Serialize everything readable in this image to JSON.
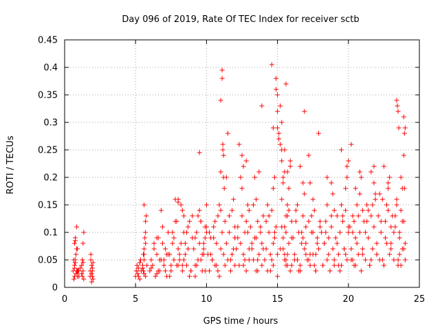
{
  "chart_data": {
    "type": "scatter",
    "title": "Day 096 of 2019, Rate Of TEC Index for receiver sctb",
    "xlabel": "GPS time / hours",
    "ylabel": "ROTI / TECUs",
    "xlim": [
      0,
      25
    ],
    "ylim": [
      0,
      0.45
    ],
    "xticks": [
      0,
      5,
      10,
      15,
      20,
      25
    ],
    "yticks": [
      0,
      0.05,
      0.1,
      0.15,
      0.2,
      0.25,
      0.3,
      0.35,
      0.4,
      0.45
    ],
    "grid": true,
    "marker": "+",
    "series": [
      {
        "name": "ROTI",
        "color": "#ff0000",
        "x": [
          0.6,
          0.65,
          0.7,
          0.7,
          0.75,
          0.8,
          0.85,
          0.9,
          0.95,
          1.0,
          0.7,
          0.75,
          0.8,
          0.85,
          0.9,
          0.7,
          0.75,
          0.8,
          0.65,
          0.7,
          0.75,
          0.85,
          0.9,
          1.0,
          1.0,
          1.1,
          1.2,
          1.25,
          1.3,
          1.35,
          1.2,
          1.25,
          1.3,
          1.3,
          1.35,
          1.8,
          1.85,
          1.9,
          1.95,
          2.0,
          1.85,
          1.9,
          1.95,
          2.0,
          1.8,
          1.9,
          1.95,
          5.0,
          5.05,
          5.1,
          5.15,
          5.2,
          5.3,
          5.35,
          5.4,
          5.5,
          5.55,
          5.6,
          5.2,
          5.3,
          5.4,
          5.5,
          5.6,
          5.7,
          5.6,
          5.7,
          5.65,
          5.7,
          5.6,
          5.75,
          5.8,
          5.55,
          5.6,
          5.7,
          6.0,
          6.1,
          6.2,
          6.3,
          6.4,
          6.5,
          6.6,
          6.7,
          6.8,
          6.9,
          7.0,
          7.1,
          7.2,
          7.3,
          7.4,
          7.5,
          7.6,
          7.7,
          7.8,
          7.9,
          8.0,
          6.5,
          6.6,
          6.8,
          7.0,
          7.2,
          7.4,
          7.6,
          7.8,
          8.0,
          6.1,
          6.3,
          6.5,
          6.7,
          6.9,
          7.1,
          7.3,
          7.5,
          7.7,
          7.9,
          8.1,
          8.2,
          8.3,
          8.4,
          8.5,
          8.6,
          8.7,
          8.8,
          8.9,
          9.0,
          8.2,
          8.4,
          8.6,
          8.8,
          9.0,
          8.1,
          8.3,
          8.5,
          8.7,
          8.9,
          8.0,
          8.0,
          8.3,
          8.4,
          9.1,
          9.2,
          9.3,
          9.4,
          9.5,
          9.6,
          9.7,
          9.8,
          9.9,
          10.0,
          9.2,
          9.4,
          9.6,
          9.8,
          10.0,
          9.3,
          9.5,
          9.7,
          9.9,
          9.2,
          9.4,
          9.6,
          9.8,
          9.9,
          10.0,
          9.5,
          10.1,
          10.2,
          10.3,
          10.4,
          10.5,
          10.6,
          10.7,
          10.8,
          10.9,
          11.0,
          10.2,
          10.4,
          10.6,
          10.8,
          11.0,
          10.3,
          10.5,
          10.7,
          10.9,
          11.0,
          11.0,
          11.1,
          11.1,
          11.15,
          11.15,
          11.2,
          11.2,
          11.25,
          11.1,
          11.2,
          11.3,
          11.3,
          11.4,
          11.5,
          11.6,
          11.7,
          11.8,
          11.9,
          12.0,
          11.4,
          11.6,
          11.8,
          12.0,
          11.5,
          11.7,
          11.9,
          12.0,
          12.0,
          12.1,
          12.2,
          12.3,
          12.4,
          12.5,
          12.6,
          12.7,
          12.8,
          12.9,
          13.0,
          12.2,
          12.4,
          12.6,
          12.8,
          13.0,
          12.3,
          12.5,
          12.7,
          12.9,
          12.5,
          12.6,
          12.8,
          13.0,
          13.1,
          13.2,
          13.3,
          13.4,
          13.5,
          13.6,
          13.7,
          13.8,
          13.9,
          14.0,
          13.2,
          13.4,
          13.6,
          13.8,
          14.0,
          13.3,
          13.5,
          13.7,
          13.9,
          13.5,
          13.6,
          13.9,
          14.1,
          14.2,
          14.3,
          14.4,
          14.5,
          14.6,
          14.7,
          14.8,
          14.9,
          15.0,
          14.2,
          14.4,
          14.6,
          14.8,
          15.0,
          14.3,
          14.5,
          14.7,
          14.9,
          14.6,
          14.7,
          14.7,
          14.8,
          14.9,
          15.0,
          15.0,
          15.0,
          15.1,
          15.2,
          15.3,
          15.4,
          15.5,
          15.6,
          15.7,
          15.8,
          15.9,
          16.0,
          15.1,
          15.2,
          15.3,
          15.3,
          15.4,
          15.4,
          15.5,
          15.5,
          15.6,
          15.6,
          15.6,
          15.7,
          15.7,
          15.8,
          15.9,
          16.0,
          15.2,
          15.4,
          15.6,
          15.8,
          16.0,
          15.3,
          15.5,
          15.7,
          15.9,
          15.3,
          15.5,
          15.7,
          16.1,
          16.2,
          16.3,
          16.4,
          16.5,
          16.6,
          16.7,
          16.8,
          16.9,
          17.0,
          16.2,
          16.4,
          16.6,
          16.8,
          17.0,
          16.3,
          16.5,
          16.7,
          16.9,
          16.6,
          16.8,
          16.9,
          17.0,
          17.1,
          17.2,
          17.3,
          17.4,
          17.5,
          17.6,
          17.7,
          17.8,
          17.9,
          18.0,
          17.2,
          17.4,
          17.6,
          17.8,
          18.0,
          17.3,
          17.5,
          17.7,
          17.9,
          17.2,
          17.3,
          17.5,
          17.7,
          18.1,
          18.2,
          18.3,
          18.4,
          18.5,
          18.6,
          18.7,
          18.8,
          18.9,
          19.0,
          18.2,
          18.4,
          18.6,
          18.8,
          19.0,
          18.3,
          18.5,
          18.7,
          18.9,
          18.5,
          18.8,
          19.0,
          19.1,
          19.2,
          19.3,
          19.4,
          19.5,
          19.6,
          19.7,
          19.8,
          19.9,
          20.0,
          19.2,
          19.4,
          19.6,
          19.8,
          20.0,
          19.3,
          19.5,
          19.7,
          19.9,
          19.5,
          19.8,
          19.9,
          20.0,
          20.2,
          20.3,
          20.1,
          20.2,
          20.3,
          20.4,
          20.5,
          20.6,
          20.7,
          20.8,
          20.9,
          21.0,
          20.2,
          20.4,
          20.6,
          20.8,
          21.0,
          20.3,
          20.5,
          20.7,
          20.9,
          20.5,
          20.8,
          21.0,
          21.1,
          21.2,
          21.3,
          21.4,
          21.5,
          21.6,
          21.7,
          21.8,
          21.9,
          22.0,
          21.2,
          21.4,
          21.6,
          21.8,
          22.0,
          21.3,
          21.5,
          21.7,
          21.9,
          21.6,
          21.8,
          22.0,
          22.1,
          22.2,
          22.3,
          22.4,
          22.5,
          22.6,
          22.7,
          22.8,
          22.9,
          23.0,
          22.2,
          22.4,
          22.6,
          22.8,
          23.0,
          22.3,
          22.5,
          22.7,
          22.9,
          22.5,
          22.8,
          23.0,
          23.1,
          23.2,
          23.3,
          23.4,
          23.5,
          23.6,
          23.7,
          23.8,
          23.9,
          24.0,
          23.2,
          23.4,
          23.6,
          23.8,
          24.0,
          23.3,
          23.5,
          23.7,
          23.9,
          23.4,
          23.45,
          23.5,
          23.55,
          23.5,
          23.6,
          23.7,
          23.8,
          23.9,
          23.95,
          24.0,
          23.9,
          23.95
        ],
        "y": [
          0.03,
          0.05,
          0.08,
          0.04,
          0.09,
          0.06,
          0.11,
          0.07,
          0.03,
          0.02,
          0.035,
          0.045,
          0.025,
          0.07,
          0.03,
          0.02,
          0.085,
          0.06,
          0.015,
          0.04,
          0.05,
          0.03,
          0.02,
          0.02,
          0.03,
          0.035,
          0.04,
          0.05,
          0.08,
          0.1,
          0.025,
          0.02,
          0.045,
          0.03,
          0.015,
          0.03,
          0.05,
          0.04,
          0.02,
          0.015,
          0.06,
          0.025,
          0.035,
          0.045,
          0.02,
          0.01,
          0.03,
          0.02,
          0.03,
          0.04,
          0.025,
          0.035,
          0.015,
          0.05,
          0.03,
          0.04,
          0.06,
          0.025,
          0.02,
          0.045,
          0.03,
          0.035,
          0.07,
          0.1,
          0.15,
          0.12,
          0.09,
          0.08,
          0.05,
          0.13,
          0.04,
          0.03,
          0.06,
          0.02,
          0.03,
          0.05,
          0.04,
          0.08,
          0.02,
          0.06,
          0.09,
          0.03,
          0.05,
          0.11,
          0.04,
          0.07,
          0.02,
          0.1,
          0.06,
          0.03,
          0.08,
          0.05,
          0.12,
          0.04,
          0.07,
          0.09,
          0.03,
          0.14,
          0.05,
          0.06,
          0.02,
          0.1,
          0.16,
          0.04,
          0.035,
          0.07,
          0.025,
          0.05,
          0.08,
          0.03,
          0.06,
          0.04,
          0.09,
          0.12,
          0.05,
          0.08,
          0.03,
          0.1,
          0.06,
          0.04,
          0.07,
          0.12,
          0.03,
          0.09,
          0.15,
          0.05,
          0.1,
          0.02,
          0.13,
          0.06,
          0.04,
          0.08,
          0.11,
          0.03,
          0.155,
          0.16,
          0.14,
          0.13,
          0.07,
          0.04,
          0.1,
          0.05,
          0.08,
          0.12,
          0.03,
          0.06,
          0.09,
          0.11,
          0.02,
          0.13,
          0.05,
          0.07,
          0.1,
          0.04,
          0.14,
          0.06,
          0.03,
          0.09,
          0.05,
          0.12,
          0.08,
          0.11,
          0.15,
          0.245,
          0.06,
          0.03,
          0.09,
          0.05,
          0.11,
          0.04,
          0.08,
          0.13,
          0.02,
          0.07,
          0.1,
          0.05,
          0.12,
          0.03,
          0.14,
          0.06,
          0.09,
          0.04,
          0.15,
          0.34,
          0.21,
          0.395,
          0.38,
          0.26,
          0.25,
          0.24,
          0.2,
          0.18,
          0.1,
          0.06,
          0.04,
          0.12,
          0.08,
          0.05,
          0.1,
          0.03,
          0.14,
          0.07,
          0.09,
          0.2,
          0.13,
          0.06,
          0.11,
          0.28,
          0.05,
          0.16,
          0.09,
          0.04,
          0.07,
          0.11,
          0.04,
          0.08,
          0.13,
          0.06,
          0.1,
          0.03,
          0.15,
          0.05,
          0.09,
          0.2,
          0.04,
          0.12,
          0.07,
          0.26,
          0.18,
          0.05,
          0.1,
          0.24,
          0.22,
          0.23,
          0.14,
          0.11,
          0.07,
          0.05,
          0.09,
          0.03,
          0.12,
          0.06,
          0.1,
          0.04,
          0.13,
          0.08,
          0.2,
          0.05,
          0.11,
          0.07,
          0.15,
          0.09,
          0.21,
          0.33,
          0.16,
          0.03,
          0.08,
          0.05,
          0.12,
          0.03,
          0.1,
          0.06,
          0.14,
          0.04,
          0.09,
          0.11,
          0.02,
          0.07,
          0.13,
          0.05,
          0.1,
          0.06,
          0.15,
          0.03,
          0.08,
          0.36,
          0.405,
          0.29,
          0.18,
          0.2,
          0.38,
          0.35,
          0.32,
          0.29,
          0.27,
          0.33,
          0.3,
          0.2,
          0.25,
          0.37,
          0.21,
          0.18,
          0.23,
          0.09,
          0.28,
          0.26,
          0.16,
          0.23,
          0.19,
          0.07,
          0.11,
          0.05,
          0.13,
          0.04,
          0.1,
          0.06,
          0.15,
          0.08,
          0.03,
          0.12,
          0.07,
          0.09,
          0.05,
          0.14,
          0.04,
          0.11,
          0.06,
          0.13,
          0.22,
          0.25,
          0.21,
          0.04,
          0.09,
          0.06,
          0.12,
          0.05,
          0.1,
          0.03,
          0.08,
          0.13,
          0.07,
          0.11,
          0.05,
          0.15,
          0.04,
          0.09,
          0.06,
          0.14,
          0.03,
          0.1,
          0.17,
          0.22,
          0.19,
          0.32,
          0.08,
          0.05,
          0.12,
          0.04,
          0.1,
          0.06,
          0.14,
          0.03,
          0.09,
          0.07,
          0.11,
          0.05,
          0.13,
          0.04,
          0.08,
          0.12,
          0.06,
          0.1,
          0.03,
          0.28,
          0.24,
          0.19,
          0.16,
          0.06,
          0.1,
          0.04,
          0.08,
          0.12,
          0.05,
          0.09,
          0.03,
          0.11,
          0.07,
          0.14,
          0.04,
          0.1,
          0.06,
          0.13,
          0.05,
          0.08,
          0.15,
          0.03,
          0.17,
          0.2,
          0.19,
          0.04,
          0.09,
          0.13,
          0.06,
          0.1,
          0.04,
          0.12,
          0.07,
          0.14,
          0.05,
          0.11,
          0.08,
          0.03,
          0.13,
          0.06,
          0.1,
          0.04,
          0.15,
          0.07,
          0.22,
          0.25,
          0.18,
          0.2,
          0.23,
          0.26,
          0.05,
          0.11,
          0.07,
          0.13,
          0.04,
          0.09,
          0.15,
          0.06,
          0.1,
          0.03,
          0.14,
          0.05,
          0.12,
          0.08,
          0.17,
          0.06,
          0.1,
          0.04,
          0.13,
          0.2,
          0.18,
          0.21,
          0.07,
          0.12,
          0.05,
          0.15,
          0.09,
          0.04,
          0.13,
          0.07,
          0.11,
          0.16,
          0.06,
          0.1,
          0.14,
          0.05,
          0.19,
          0.08,
          0.12,
          0.04,
          0.15,
          0.17,
          0.21,
          0.22,
          0.06,
          0.13,
          0.05,
          0.1,
          0.16,
          0.04,
          0.12,
          0.08,
          0.14,
          0.06,
          0.11,
          0.17,
          0.05,
          0.09,
          0.19,
          0.07,
          0.12,
          0.04,
          0.15,
          0.2,
          0.22,
          0.18,
          0.08,
          0.13,
          0.05,
          0.11,
          0.16,
          0.04,
          0.09,
          0.14,
          0.07,
          0.12,
          0.05,
          0.1,
          0.15,
          0.06,
          0.18,
          0.08,
          0.13,
          0.04,
          0.2,
          0.24,
          0.34,
          0.33,
          0.32,
          0.29,
          0.05,
          0.1,
          0.04,
          0.12,
          0.07,
          0.18,
          0.29,
          0.31,
          0.28
        ]
      }
    ]
  }
}
